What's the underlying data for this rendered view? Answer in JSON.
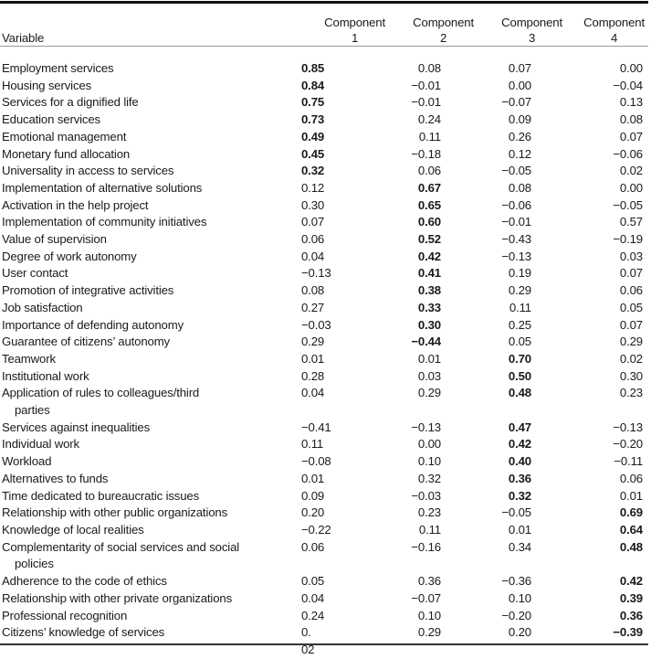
{
  "table": {
    "columns": [
      "Variable",
      "Component 1",
      "Component 2",
      "Component 3",
      "Component 4"
    ],
    "header": {
      "variable": "Variable",
      "components": [
        {
          "line1": "Component",
          "line2": "1"
        },
        {
          "line1": "Component",
          "line2": "2"
        },
        {
          "line1": "Component",
          "line2": "3"
        },
        {
          "line1": "Component",
          "line2": "4"
        }
      ]
    },
    "rows": [
      {
        "variable": "Employment services",
        "values": [
          "0.85",
          "0.08",
          "0.07",
          "0.00"
        ],
        "bold": 0
      },
      {
        "variable": "Housing services",
        "values": [
          "0.84",
          "−0.01",
          "0.00",
          "−0.04"
        ],
        "bold": 0
      },
      {
        "variable": "Services for a dignified life",
        "values": [
          "0.75",
          "−0.01",
          "−0.07",
          "0.13"
        ],
        "bold": 0
      },
      {
        "variable": "Education services",
        "values": [
          "0.73",
          "0.24",
          "0.09",
          "0.08"
        ],
        "bold": 0
      },
      {
        "variable": "Emotional management",
        "values": [
          "0.49",
          "0.11",
          "0.26",
          "0.07"
        ],
        "bold": 0
      },
      {
        "variable": "Monetary fund allocation",
        "values": [
          "0.45",
          "−0.18",
          "0.12",
          "−0.06"
        ],
        "bold": 0
      },
      {
        "variable": "Universality in access to services",
        "values": [
          "0.32",
          "0.06",
          "−0.05",
          "0.02"
        ],
        "bold": 0
      },
      {
        "variable": "Implementation of alternative solutions",
        "values": [
          "0.12",
          "0.67",
          "0.08",
          "0.00"
        ],
        "bold": 1
      },
      {
        "variable": "Activation in the help project",
        "values": [
          "0.30",
          "0.65",
          "−0.06",
          "−0.05"
        ],
        "bold": 1
      },
      {
        "variable": "Implementation of community initiatives",
        "values": [
          "0.07",
          "0.60",
          "−0.01",
          "0.57"
        ],
        "bold": 1
      },
      {
        "variable": "Value of supervision",
        "values": [
          "0.06",
          "0.52",
          "−0.43",
          "−0.19"
        ],
        "bold": 1
      },
      {
        "variable": "Degree of work autonomy",
        "values": [
          "0.04",
          "0.42",
          "−0.13",
          "0.03"
        ],
        "bold": 1
      },
      {
        "variable": "User contact",
        "values": [
          "−0.13",
          "0.41",
          "0.19",
          "0.07"
        ],
        "bold": 1
      },
      {
        "variable": "Promotion of integrative activities",
        "values": [
          "0.08",
          "0.38",
          "0.29",
          "0.06"
        ],
        "bold": 1
      },
      {
        "variable": "Job satisfaction",
        "values": [
          "0.27",
          "0.33",
          "0.11",
          "0.05"
        ],
        "bold": 1
      },
      {
        "variable": "Importance of defending autonomy",
        "values": [
          "−0.03",
          "0.30",
          "0.25",
          "0.07"
        ],
        "bold": 1
      },
      {
        "variable": "Guarantee of citizens’ autonomy",
        "values": [
          "0.29",
          "−0.44",
          "0.05",
          "0.29"
        ],
        "bold": 1
      },
      {
        "variable": "Teamwork",
        "values": [
          "0.01",
          "0.01",
          "0.70",
          "0.02"
        ],
        "bold": 2
      },
      {
        "variable": "Institutional work",
        "values": [
          "0.28",
          "0.03",
          "0.50",
          "0.30"
        ],
        "bold": 2
      },
      {
        "variable": "Application of rules to colleagues/third",
        "variable_cont": "parties",
        "values": [
          "0.04",
          "0.29",
          "0.48",
          "0.23"
        ],
        "bold": 2
      },
      {
        "variable": "Services against inequalities",
        "values": [
          "−0.41",
          "−0.13",
          "0.47",
          "−0.13"
        ],
        "bold": 2
      },
      {
        "variable": "Individual work",
        "values": [
          "0.11",
          "0.00",
          "0.42",
          "−0.20"
        ],
        "bold": 2
      },
      {
        "variable": "Workload",
        "values": [
          "−0.08",
          "0.10",
          "0.40",
          "−0.11"
        ],
        "bold": 2
      },
      {
        "variable": "Alternatives to funds",
        "values": [
          "0.01",
          "0.32",
          "0.36",
          "0.06"
        ],
        "bold": 2
      },
      {
        "variable": "Time dedicated to bureaucratic issues",
        "values": [
          "0.09",
          "−0.03",
          "0.32",
          "0.01"
        ],
        "bold": 2
      },
      {
        "variable": "Relationship with other public organizations",
        "values": [
          "0.20",
          "0.23",
          "−0.05",
          "0.69"
        ],
        "bold": 3
      },
      {
        "variable": "Knowledge of local realities",
        "values": [
          "−0.22",
          "0.11",
          "0.01",
          "0.64"
        ],
        "bold": 3
      },
      {
        "variable": "Complementarity of social services and social",
        "variable_cont": "policies",
        "values": [
          "0.06",
          "−0.16",
          "0.34",
          "0.48"
        ],
        "bold": 3
      },
      {
        "variable": "Adherence to the code of ethics",
        "values": [
          "0.05",
          "0.36",
          "−0.36",
          "0.42"
        ],
        "bold": 3
      },
      {
        "variable": "Relationship with other private organizations",
        "values": [
          "0.04",
          "−0.07",
          "0.10",
          "0.39"
        ],
        "bold": 3
      },
      {
        "variable": "Professional recognition",
        "values": [
          "0.24",
          "0.10",
          "−0.20",
          "0.36"
        ],
        "bold": 3
      },
      {
        "variable": "Citizens’ knowledge of services",
        "values": [
          "0. 02",
          "0.29",
          "0.20",
          "−0.39"
        ],
        "bold": 3
      }
    ]
  }
}
